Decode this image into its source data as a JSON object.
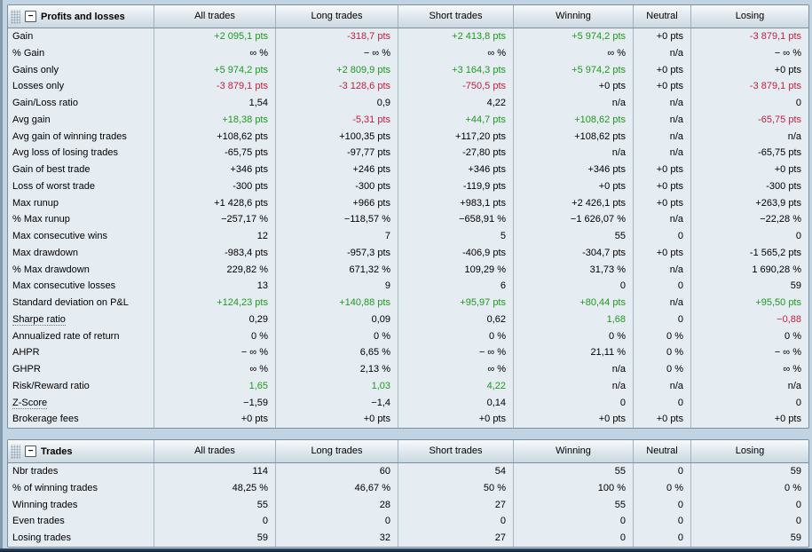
{
  "colors": {
    "green": "#1f9a1f",
    "red": "#c61f3e",
    "page_background": "#c2d4e1",
    "row_background": "#e5ecf2"
  },
  "tables": [
    {
      "title": "Profits and losses",
      "collapse_glyph": "−",
      "columns": [
        "All trades",
        "Long trades",
        "Short trades",
        "Winning",
        "Neutral",
        "Losing"
      ],
      "rows": [
        {
          "label": "Gain",
          "values": [
            "+2 095,1 pts",
            "-318,7 pts",
            "+2 413,8 pts",
            "+5 974,2 pts",
            "+0 pts",
            "-3 879,1 pts"
          ],
          "colors": [
            "g",
            "r",
            "g",
            "g",
            "k",
            "r"
          ]
        },
        {
          "label": "% Gain",
          "values": [
            "∞ %",
            "− ∞ %",
            "∞ %",
            "∞ %",
            "n/a",
            "− ∞ %"
          ],
          "colors": [
            "k",
            "k",
            "k",
            "k",
            "k",
            "k"
          ]
        },
        {
          "label": "Gains only",
          "values": [
            "+5 974,2 pts",
            "+2 809,9 pts",
            "+3 164,3 pts",
            "+5 974,2 pts",
            "+0 pts",
            "+0 pts"
          ],
          "colors": [
            "g",
            "g",
            "g",
            "g",
            "k",
            "k"
          ]
        },
        {
          "label": "Losses only",
          "values": [
            "-3 879,1 pts",
            "-3 128,6 pts",
            "-750,5 pts",
            "+0 pts",
            "+0 pts",
            "-3 879,1 pts"
          ],
          "colors": [
            "r",
            "r",
            "r",
            "k",
            "k",
            "r"
          ]
        },
        {
          "label": "Gain/Loss ratio",
          "values": [
            "1,54",
            "0,9",
            "4,22",
            "n/a",
            "n/a",
            "0"
          ],
          "colors": [
            "k",
            "k",
            "k",
            "k",
            "k",
            "k"
          ]
        },
        {
          "label": "Avg gain",
          "values": [
            "+18,38 pts",
            "-5,31 pts",
            "+44,7 pts",
            "+108,62 pts",
            "n/a",
            "-65,75 pts"
          ],
          "colors": [
            "g",
            "r",
            "g",
            "g",
            "k",
            "r"
          ]
        },
        {
          "label": "Avg gain of winning trades",
          "values": [
            "+108,62 pts",
            "+100,35 pts",
            "+117,20 pts",
            "+108,62 pts",
            "n/a",
            "n/a"
          ],
          "colors": [
            "k",
            "k",
            "k",
            "k",
            "k",
            "k"
          ]
        },
        {
          "label": "Avg loss of losing trades",
          "values": [
            "-65,75 pts",
            "-97,77 pts",
            "-27,80 pts",
            "n/a",
            "n/a",
            "-65,75 pts"
          ],
          "colors": [
            "k",
            "k",
            "k",
            "k",
            "k",
            "k"
          ]
        },
        {
          "label": "Gain of best trade",
          "values": [
            "+346 pts",
            "+246 pts",
            "+346 pts",
            "+346 pts",
            "+0 pts",
            "+0 pts"
          ],
          "colors": [
            "k",
            "k",
            "k",
            "k",
            "k",
            "k"
          ]
        },
        {
          "label": "Loss of worst trade",
          "values": [
            "-300 pts",
            "-300 pts",
            "-119,9 pts",
            "+0 pts",
            "+0 pts",
            "-300 pts"
          ],
          "colors": [
            "k",
            "k",
            "k",
            "k",
            "k",
            "k"
          ]
        },
        {
          "label": "Max runup",
          "values": [
            "+1 428,6 pts",
            "+966 pts",
            "+983,1 pts",
            "+2 426,1 pts",
            "+0 pts",
            "+263,9 pts"
          ],
          "colors": [
            "k",
            "k",
            "k",
            "k",
            "k",
            "k"
          ]
        },
        {
          "label": "% Max runup",
          "values": [
            "−257,17 %",
            "−118,57 %",
            "−658,91 %",
            "−1 626,07 %",
            "n/a",
            "−22,28 %"
          ],
          "colors": [
            "k",
            "k",
            "k",
            "k",
            "k",
            "k"
          ]
        },
        {
          "label": "Max consecutive wins",
          "values": [
            "12",
            "7",
            "5",
            "55",
            "0",
            "0"
          ],
          "colors": [
            "k",
            "k",
            "k",
            "k",
            "k",
            "k"
          ]
        },
        {
          "label": "Max drawdown",
          "values": [
            "-983,4 pts",
            "-957,3 pts",
            "-406,9 pts",
            "-304,7 pts",
            "+0 pts",
            "-1 565,2 pts"
          ],
          "colors": [
            "k",
            "k",
            "k",
            "k",
            "k",
            "k"
          ]
        },
        {
          "label": "% Max drawdown",
          "values": [
            "229,82 %",
            "671,32 %",
            "109,29 %",
            "31,73 %",
            "n/a",
            "1 690,28 %"
          ],
          "colors": [
            "k",
            "k",
            "k",
            "k",
            "k",
            "k"
          ]
        },
        {
          "label": "Max consecutive losses",
          "values": [
            "13",
            "9",
            "6",
            "0",
            "0",
            "59"
          ],
          "colors": [
            "k",
            "k",
            "k",
            "k",
            "k",
            "k"
          ]
        },
        {
          "label": "Standard deviation on P&L",
          "values": [
            "+124,23 pts",
            "+140,88 pts",
            "+95,97 pts",
            "+80,44 pts",
            "n/a",
            "+95,50 pts"
          ],
          "colors": [
            "g",
            "g",
            "g",
            "g",
            "k",
            "g"
          ]
        },
        {
          "label": "Sharpe ratio",
          "help": true,
          "values": [
            "0,29",
            "0,09",
            "0,62",
            "1,68",
            "0",
            "−0,88"
          ],
          "colors": [
            "k",
            "k",
            "k",
            "g",
            "k",
            "r"
          ]
        },
        {
          "label": "Annualized rate of return",
          "values": [
            "0 %",
            "0 %",
            "0 %",
            "0 %",
            "0 %",
            "0 %"
          ],
          "colors": [
            "k",
            "k",
            "k",
            "k",
            "k",
            "k"
          ]
        },
        {
          "label": "AHPR",
          "values": [
            "− ∞ %",
            "6,65 %",
            "− ∞ %",
            "21,11 %",
            "0 %",
            "− ∞ %"
          ],
          "colors": [
            "k",
            "k",
            "k",
            "k",
            "k",
            "k"
          ]
        },
        {
          "label": "GHPR",
          "values": [
            "∞ %",
            "2,13 %",
            "∞ %",
            "n/a",
            "0 %",
            "∞ %"
          ],
          "colors": [
            "k",
            "k",
            "k",
            "k",
            "k",
            "k"
          ]
        },
        {
          "label": "Risk/Reward ratio",
          "values": [
            "1,65",
            "1,03",
            "4,22",
            "n/a",
            "n/a",
            "n/a"
          ],
          "colors": [
            "g",
            "g",
            "g",
            "k",
            "k",
            "k"
          ]
        },
        {
          "label": "Z-Score",
          "help": true,
          "values": [
            "−1,59",
            "−1,4",
            "0,14",
            "0",
            "0",
            "0"
          ],
          "colors": [
            "k",
            "k",
            "k",
            "k",
            "k",
            "k"
          ]
        },
        {
          "label": "Brokerage fees",
          "values": [
            "+0 pts",
            "+0 pts",
            "+0 pts",
            "+0 pts",
            "+0 pts",
            "+0 pts"
          ],
          "colors": [
            "k",
            "k",
            "k",
            "k",
            "k",
            "k"
          ]
        }
      ]
    },
    {
      "title": "Trades",
      "collapse_glyph": "−",
      "columns": [
        "All trades",
        "Long trades",
        "Short trades",
        "Winning",
        "Neutral",
        "Losing"
      ],
      "rows": [
        {
          "label": "Nbr trades",
          "values": [
            "114",
            "60",
            "54",
            "55",
            "0",
            "59"
          ],
          "colors": [
            "k",
            "k",
            "k",
            "k",
            "k",
            "k"
          ]
        },
        {
          "label": "% of winning trades",
          "values": [
            "48,25 %",
            "46,67 %",
            "50 %",
            "100 %",
            "0 %",
            "0 %"
          ],
          "colors": [
            "k",
            "k",
            "k",
            "k",
            "k",
            "k"
          ]
        },
        {
          "label": "Winning trades",
          "values": [
            "55",
            "28",
            "27",
            "55",
            "0",
            "0"
          ],
          "colors": [
            "k",
            "k",
            "k",
            "k",
            "k",
            "k"
          ]
        },
        {
          "label": "Even trades",
          "values": [
            "0",
            "0",
            "0",
            "0",
            "0",
            "0"
          ],
          "colors": [
            "k",
            "k",
            "k",
            "k",
            "k",
            "k"
          ]
        },
        {
          "label": "Losing trades",
          "values": [
            "59",
            "32",
            "27",
            "0",
            "0",
            "59"
          ],
          "colors": [
            "k",
            "k",
            "k",
            "k",
            "k",
            "k"
          ]
        }
      ]
    }
  ]
}
